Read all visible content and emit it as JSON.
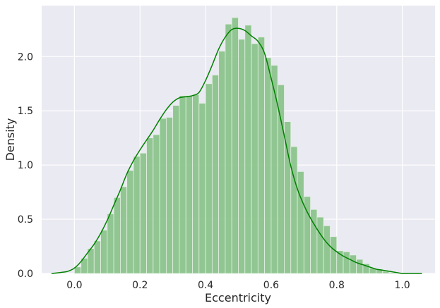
{
  "chart_data": {
    "type": "bar",
    "xlabel": "Eccentricity",
    "ylabel": "Density",
    "xlim": [
      -0.1,
      1.1
    ],
    "ylim": [
      0,
      2.47
    ],
    "grid": true,
    "xticks": [
      "0.0",
      "0.2",
      "0.4",
      "0.6",
      "0.8",
      "1.0"
    ],
    "yticks": [
      "0.0",
      "0.5",
      "1.0",
      "1.5",
      "2.0"
    ],
    "histogram": {
      "color": "#8cc48c",
      "bin_edges": [
        0.0,
        0.02,
        0.04,
        0.06,
        0.08,
        0.1,
        0.12,
        0.14,
        0.16,
        0.18,
        0.2,
        0.22,
        0.24,
        0.26,
        0.28,
        0.3,
        0.32,
        0.34,
        0.36,
        0.38,
        0.4,
        0.42,
        0.44,
        0.46,
        0.48,
        0.5,
        0.52,
        0.54,
        0.56,
        0.58,
        0.6,
        0.62,
        0.64,
        0.66,
        0.68,
        0.7,
        0.72,
        0.74,
        0.76,
        0.78,
        0.8,
        0.82,
        0.84,
        0.86,
        0.88,
        0.9,
        0.92,
        0.94,
        0.96,
        0.98
      ],
      "densities": [
        0.06,
        0.14,
        0.23,
        0.3,
        0.4,
        0.55,
        0.7,
        0.8,
        0.95,
        1.08,
        1.11,
        1.25,
        1.28,
        1.43,
        1.44,
        1.55,
        1.64,
        1.64,
        1.65,
        1.57,
        1.75,
        1.83,
        2.05,
        2.3,
        2.36,
        2.16,
        2.29,
        2.12,
        2.18,
        1.99,
        1.92,
        1.74,
        1.4,
        1.17,
        0.94,
        0.71,
        0.59,
        0.52,
        0.44,
        0.34,
        0.21,
        0.2,
        0.17,
        0.13,
        0.09,
        0.05,
        0.04,
        0.02,
        0.01
      ]
    },
    "kde": {
      "color": "#008000",
      "x": [
        -0.07,
        -0.04,
        -0.02,
        0.0,
        0.02,
        0.04,
        0.06,
        0.08,
        0.1,
        0.12,
        0.14,
        0.16,
        0.18,
        0.2,
        0.22,
        0.24,
        0.26,
        0.28,
        0.3,
        0.32,
        0.34,
        0.36,
        0.38,
        0.4,
        0.42,
        0.44,
        0.46,
        0.48,
        0.5,
        0.52,
        0.54,
        0.56,
        0.58,
        0.6,
        0.62,
        0.64,
        0.66,
        0.68,
        0.7,
        0.72,
        0.74,
        0.76,
        0.78,
        0.8,
        0.82,
        0.84,
        0.86,
        0.88,
        0.9,
        0.92,
        0.94,
        0.96,
        0.98,
        1.0,
        1.03,
        1.06
      ],
      "y": [
        0.0,
        0.01,
        0.02,
        0.05,
        0.11,
        0.19,
        0.27,
        0.37,
        0.49,
        0.63,
        0.77,
        0.92,
        1.04,
        1.14,
        1.23,
        1.32,
        1.42,
        1.51,
        1.58,
        1.62,
        1.63,
        1.64,
        1.67,
        1.78,
        1.92,
        2.07,
        2.18,
        2.25,
        2.26,
        2.24,
        2.19,
        2.14,
        2.03,
        1.8,
        1.55,
        1.27,
        0.99,
        0.78,
        0.63,
        0.51,
        0.41,
        0.32,
        0.25,
        0.2,
        0.16,
        0.13,
        0.1,
        0.08,
        0.06,
        0.04,
        0.03,
        0.02,
        0.01,
        0.0,
        0.0,
        0.0
      ]
    }
  }
}
